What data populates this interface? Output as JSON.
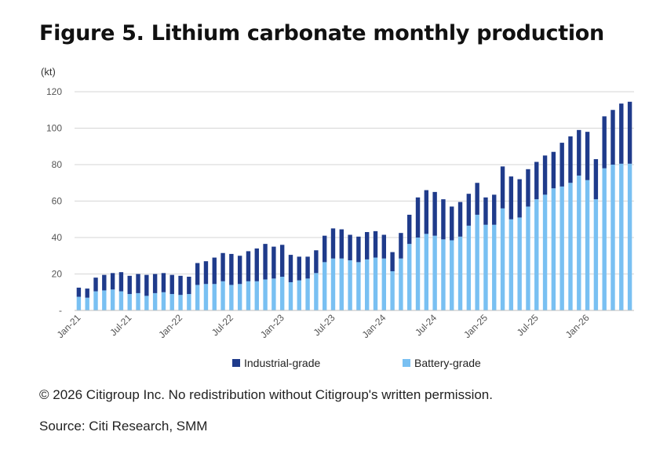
{
  "figure": {
    "title": "Figure 5. Lithium carbonate monthly production",
    "copyright": "© 2026 Citigroup Inc. No redistribution without Citigroup's written permission.",
    "source": "Source: Citi Research, SMM"
  },
  "chart_data": {
    "type": "bar",
    "stacked": true,
    "unit_label": "(kt)",
    "ylim": [
      0,
      120
    ],
    "yticks": [
      "-",
      "20",
      "40",
      "60",
      "80",
      "100",
      "120"
    ],
    "grid": true,
    "legend_position": "bottom",
    "x": [
      "Jan-21",
      "Feb-21",
      "Mar-21",
      "Apr-21",
      "May-21",
      "Jun-21",
      "Jul-21",
      "Aug-21",
      "Sep-21",
      "Oct-21",
      "Nov-21",
      "Dec-21",
      "Jan-22",
      "Feb-22",
      "Mar-22",
      "Apr-22",
      "May-22",
      "Jun-22",
      "Jul-22",
      "Aug-22",
      "Sep-22",
      "Oct-22",
      "Nov-22",
      "Dec-22",
      "Jan-23",
      "Feb-23",
      "Mar-23",
      "Apr-23",
      "May-23",
      "Jun-23",
      "Jul-23",
      "Aug-23",
      "Sep-23",
      "Oct-23",
      "Nov-23",
      "Dec-23",
      "Jan-24",
      "Feb-24",
      "Mar-24",
      "Apr-24",
      "May-24",
      "Jun-24",
      "Jul-24",
      "Aug-24",
      "Sep-24",
      "Oct-24",
      "Nov-24",
      "Dec-24",
      "Jan-25",
      "Feb-25",
      "Mar-25",
      "Apr-25",
      "May-25",
      "Jun-25",
      "Jul-25",
      "Aug-25",
      "Sep-25",
      "Oct-25",
      "Nov-25",
      "Dec-25",
      "Jan-26",
      "Feb-26",
      "Mar-26",
      "Apr-26",
      "May-26",
      "Jun-26"
    ],
    "xtick_labels": [
      "Jan-21",
      "Jul-21",
      "Jan-22",
      "Jul-22",
      "Jan-23",
      "Jul-23",
      "Jan-24",
      "Jul-24",
      "Jan-25",
      "Jul-25",
      "Jan-26"
    ],
    "series": [
      {
        "name": "Battery-grade",
        "color": "#79c0f2",
        "values": [
          7.5,
          7,
          10.5,
          11,
          11.5,
          10.5,
          9,
          9.5,
          8,
          9.5,
          10,
          9,
          8.5,
          9,
          14,
          14.5,
          14.5,
          16,
          14,
          14.5,
          16,
          16,
          17,
          17.5,
          18.5,
          15.5,
          16.5,
          17.5,
          20.5,
          26.5,
          28.5,
          28.5,
          27.5,
          26.5,
          28,
          29,
          28.5,
          21.5,
          28.5,
          36.5,
          40,
          42,
          41,
          39,
          38.5,
          40.5,
          46.5,
          52.5,
          47,
          47,
          56,
          50,
          51,
          57,
          61,
          63.5,
          67,
          68,
          70,
          74,
          71.5,
          61,
          78,
          80,
          80.5,
          80.5
        ]
      },
      {
        "name": "Industrial-grade",
        "color": "#1f3b8b",
        "values": [
          5,
          5,
          7.5,
          8.5,
          9,
          10.5,
          10,
          10.5,
          11.5,
          10.5,
          10.5,
          10.5,
          10.5,
          9.5,
          12,
          12.5,
          14.5,
          15.5,
          17,
          15.5,
          16.5,
          18,
          19.5,
          17.5,
          17.5,
          15,
          13,
          12,
          12.5,
          14.5,
          16.5,
          16,
          14,
          14,
          15,
          14.5,
          13,
          10.5,
          14,
          16,
          22,
          24,
          24,
          22,
          18.5,
          19,
          17.5,
          17.5,
          15,
          16.5,
          23,
          23.5,
          21,
          20.5,
          20.5,
          21.5,
          20,
          24,
          25.5,
          25,
          26.5,
          22,
          28.5,
          30,
          33,
          34
        ]
      }
    ]
  }
}
